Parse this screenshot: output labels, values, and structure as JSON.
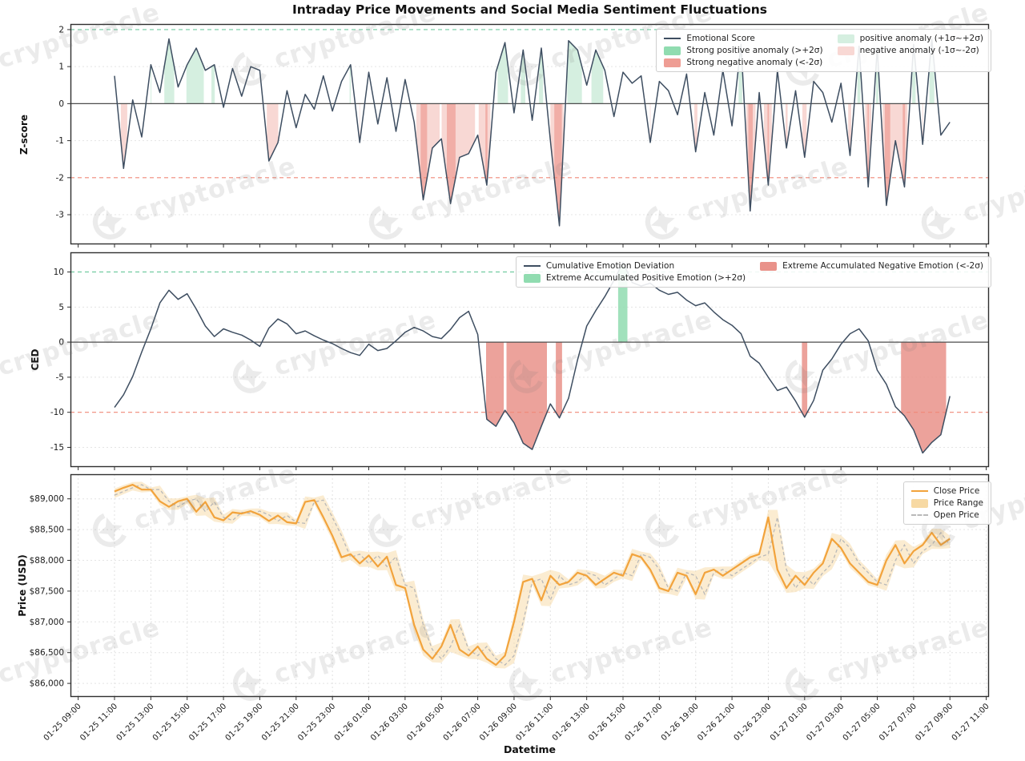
{
  "title": "Intraday Price Movements and Social Media Sentiment Fluctuations",
  "watermark": {
    "text": "cryptoracle"
  },
  "xaxis": {
    "label": "Datetime",
    "tick_labels": [
      "01-25 09:00",
      "01-25 11:00",
      "01-25 13:00",
      "01-25 15:00",
      "01-25 17:00",
      "01-25 19:00",
      "01-25 21:00",
      "01-25 23:00",
      "01-26 01:00",
      "01-26 03:00",
      "01-26 05:00",
      "01-26 07:00",
      "01-26 09:00",
      "01-26 11:00",
      "01-26 13:00",
      "01-26 15:00",
      "01-26 17:00",
      "01-26 19:00",
      "01-26 21:00",
      "01-26 23:00",
      "01-27 01:00",
      "01-27 03:00",
      "01-27 05:00",
      "01-27 07:00",
      "01-27 09:00",
      "01-27 11:00"
    ]
  },
  "chart_data": [
    {
      "type": "line",
      "name": "emotional-score-zscore",
      "ylabel": "Z-score",
      "ylim": [
        -3.8,
        2.15
      ],
      "yticks": [
        2,
        1,
        0,
        -1,
        -2,
        -3
      ],
      "upper_threshold": 2,
      "lower_threshold": -2,
      "anomaly_bands": {
        "positive_light": 1,
        "positive_strong": 2,
        "negative_light": -1,
        "negative_strong": -2
      },
      "grid": "horizontal-dotted",
      "legend": [
        {
          "label": "Emotional Score",
          "marker": "line",
          "color": "#3e4e61"
        },
        {
          "label": "Strong positive anomaly (>+2σ)",
          "marker": "patch",
          "color": "#90dcb0"
        },
        {
          "label": "Strong negative anomaly (<-2σ)",
          "marker": "patch",
          "color": "#ee9d94"
        },
        {
          "label": "positive anomaly (+1σ~+2σ)",
          "marker": "patch",
          "color": "#d5efe0"
        },
        {
          "label": "negative anomaly (-1σ~-2σ)",
          "marker": "patch",
          "color": "#f8d8d4"
        }
      ],
      "series": [
        {
          "name": "Emotional Score",
          "color": "#3e4e61",
          "values": [
            0.75,
            -1.75,
            0.1,
            -0.9,
            1.05,
            0.3,
            1.75,
            0.45,
            1.05,
            1.5,
            0.9,
            1.05,
            -0.1,
            0.95,
            0.2,
            1.0,
            0.9,
            -1.55,
            -1.05,
            0.35,
            -0.65,
            0.25,
            -0.15,
            0.75,
            -0.2,
            0.6,
            1.05,
            -1.05,
            0.85,
            -0.55,
            0.7,
            -0.75,
            0.65,
            -0.5,
            -2.6,
            -1.2,
            -0.95,
            -2.7,
            -1.45,
            -1.35,
            -0.85,
            -2.2,
            0.85,
            1.65,
            -0.25,
            1.45,
            -0.45,
            1.5,
            -1.0,
            -3.3,
            1.7,
            1.45,
            0.5,
            1.45,
            0.9,
            -0.35,
            0.85,
            0.55,
            0.75,
            -1.05,
            0.6,
            0.35,
            -0.3,
            0.8,
            -1.3,
            0.3,
            -0.85,
            0.9,
            -0.6,
            1.6,
            -2.9,
            0.3,
            -2.2,
            0.9,
            -1.2,
            0.35,
            -1.45,
            0.6,
            0.3,
            -0.5,
            0.55,
            -1.4,
            1.55,
            -2.25,
            1.5,
            -2.75,
            -1.0,
            -2.25,
            1.6,
            -1.1,
            1.75,
            -0.85,
            -0.5
          ]
        }
      ]
    },
    {
      "type": "line",
      "name": "cumulative-emotion-deviation",
      "ylabel": "CED",
      "ylim": [
        -17.8,
        12.8
      ],
      "yticks": [
        10,
        5,
        0,
        -5,
        -10,
        -15
      ],
      "upper_threshold": 10,
      "lower_threshold": -10,
      "grid": "horizontal-dotted",
      "legend": [
        {
          "label": "Cumulative Emotion Deviation",
          "marker": "line",
          "color": "#3e4e61"
        },
        {
          "label": "Extreme Accumulated Positive Emotion (>+2σ)",
          "marker": "patch",
          "color": "#90dcb0"
        },
        {
          "label": "Extreme Accumulated Negative Emotion (<-2σ)",
          "marker": "patch",
          "color": "#e9928a"
        }
      ],
      "series": [
        {
          "name": "Cumulative Emotion Deviation",
          "color": "#3e4e61",
          "values": [
            -9.3,
            -7.5,
            -4.9,
            -1.4,
            1.9,
            5.6,
            7.4,
            6.1,
            6.9,
            4.7,
            2.3,
            0.8,
            1.9,
            1.4,
            1.0,
            0.3,
            -0.6,
            2.0,
            3.3,
            2.6,
            1.2,
            1.6,
            0.9,
            0.3,
            -0.2,
            -0.9,
            -1.5,
            -1.9,
            -0.3,
            -1.2,
            -0.9,
            0.2,
            1.4,
            2.1,
            1.6,
            0.8,
            0.5,
            1.8,
            3.5,
            4.4,
            1.1,
            -11.0,
            -12.0,
            -9.7,
            -11.5,
            -14.4,
            -15.3,
            -12.0,
            -8.8,
            -10.8,
            -8.0,
            -2.5,
            2.3,
            4.5,
            6.5,
            8.8,
            11.4,
            8.5,
            8.0,
            8.4,
            7.4,
            6.8,
            7.1,
            6.0,
            5.2,
            5.6,
            4.3,
            3.2,
            2.4,
            1.2,
            -2.0,
            -3.0,
            -5.0,
            -6.9,
            -6.4,
            -8.4,
            -10.7,
            -8.3,
            -4.0,
            -2.4,
            -0.3,
            1.2,
            1.9,
            0.2,
            -4.0,
            -6.0,
            -9.2,
            -10.5,
            -12.5,
            -15.8,
            -14.3,
            -13.2,
            -7.7
          ]
        }
      ]
    },
    {
      "type": "line+band",
      "name": "price",
      "ylabel": "Price (USD)",
      "ylim": [
        85780,
        89400
      ],
      "yticks": [
        89000,
        88500,
        88000,
        87500,
        87000,
        86500,
        86000
      ],
      "ytick_labels": [
        "$89,000",
        "$88,500",
        "$88,000",
        "$87,500",
        "$87,000",
        "$86,500",
        "$86,000"
      ],
      "grid": "both-dotted",
      "legend": [
        {
          "label": "Close Price",
          "marker": "line",
          "color": "#f2a33c"
        },
        {
          "label": "Price Range",
          "marker": "patch",
          "color": "#f7d9a3"
        },
        {
          "label": "Open Price",
          "marker": "dash",
          "color": "#b9b9b9"
        }
      ],
      "series": [
        {
          "name": "Close Price",
          "color": "#f2a33c",
          "values": [
            89120,
            89180,
            89230,
            89150,
            89150,
            88960,
            88870,
            88960,
            89000,
            88790,
            88950,
            88700,
            88650,
            88780,
            88760,
            88800,
            88740,
            88640,
            88730,
            88620,
            88600,
            88950,
            88980,
            88700,
            88400,
            88050,
            88100,
            87950,
            88080,
            87900,
            88060,
            87600,
            87550,
            86950,
            86550,
            86400,
            86600,
            86950,
            86550,
            86450,
            86600,
            86400,
            86300,
            86450,
            87000,
            87650,
            87700,
            87350,
            87750,
            87600,
            87650,
            87800,
            87750,
            87600,
            87700,
            87800,
            87750,
            88100,
            88050,
            87850,
            87550,
            87500,
            87800,
            87750,
            87450,
            87800,
            87850,
            87750,
            87850,
            87950,
            88050,
            88100,
            88700,
            87850,
            87550,
            87750,
            87600,
            87800,
            87950,
            88350,
            88200,
            87950,
            87800,
            87650,
            87600,
            88000,
            88250,
            87950,
            88150,
            88250,
            88450,
            88250,
            88350
          ]
        }
      ]
    }
  ]
}
